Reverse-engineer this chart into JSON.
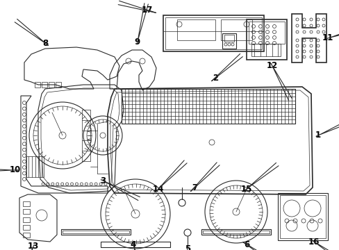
{
  "bg_color": "#ffffff",
  "line_color": "#2a2a2a",
  "label_color": "#000000",
  "figsize": [
    4.89,
    3.6
  ],
  "dpi": 100
}
